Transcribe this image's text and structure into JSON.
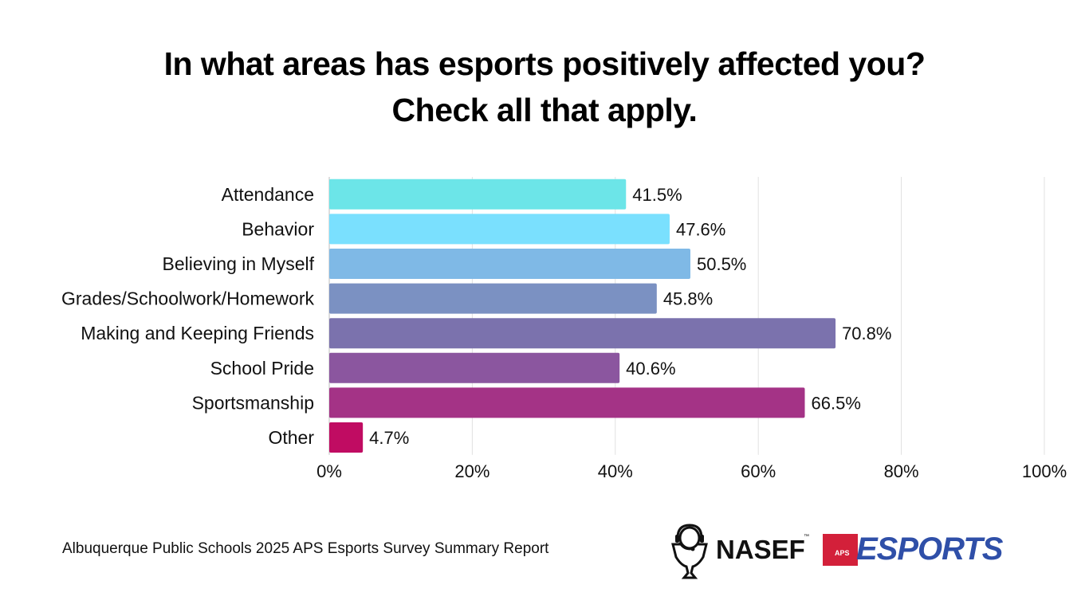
{
  "title_line1": "In what areas has esports positively affected you?",
  "title_line2": "Check all that apply.",
  "footer_text": "Albuquerque Public Schools 2025 APS Esports Survey Summary Report",
  "logos": {
    "nasef": "NASEF",
    "nasef_tm": "™",
    "aps": "APS",
    "esports": "ESPORTS"
  },
  "chart_data": {
    "type": "bar",
    "orientation": "horizontal",
    "title": "In what areas has esports positively affected you? Check all that apply.",
    "xlabel": "",
    "ylabel": "",
    "categories": [
      "Attendance",
      "Behavior",
      "Believing in Myself",
      "Grades/Schoolwork/Homework",
      "Making and Keeping Friends",
      "School Pride",
      "Sportsmanship",
      "Other"
    ],
    "values": [
      41.5,
      47.6,
      50.5,
      45.8,
      70.8,
      40.6,
      66.5,
      4.7
    ],
    "value_labels": [
      "41.5%",
      "47.6%",
      "50.5%",
      "45.8%",
      "70.8%",
      "40.6%",
      "66.5%",
      "4.7%"
    ],
    "colors": [
      "#6ce5e8",
      "#7ae0fe",
      "#7fb9e6",
      "#7b91c2",
      "#7b72ad",
      "#8b569f",
      "#a43386",
      "#c00c62"
    ],
    "xlim": [
      0,
      100
    ],
    "xticks": [
      0,
      20,
      40,
      60,
      80,
      100
    ],
    "xtick_labels": [
      "0%",
      "20%",
      "40%",
      "60%",
      "80%",
      "100%"
    ],
    "grid": true,
    "legend": "none"
  }
}
